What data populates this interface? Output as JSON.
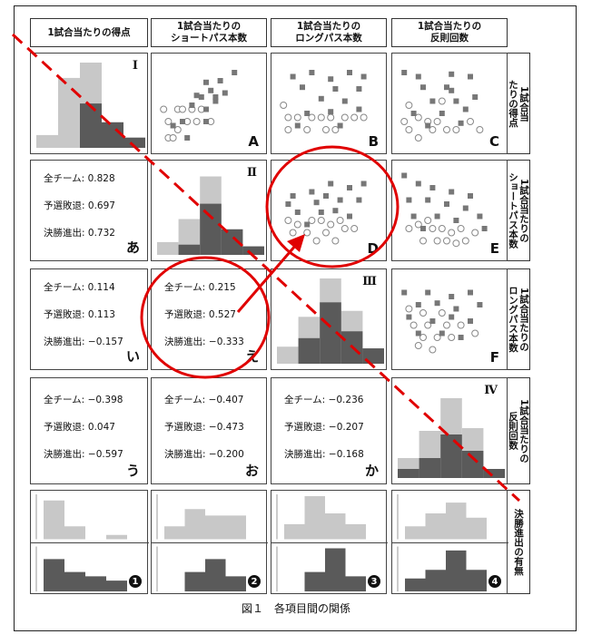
{
  "caption": "図１　各項目間の関係",
  "col_headers": [
    {
      "l1": "1試合当たりの得点",
      "l2": ""
    },
    {
      "l1": "1試合当たりの",
      "l2": "ショートパス本数"
    },
    {
      "l1": "1試合当たりの",
      "l2": "ロングパス本数"
    },
    {
      "l1": "1試合当たりの",
      "l2": "反則回数"
    }
  ],
  "row_labels": [
    "1試合当\nたりの得点",
    "1試合当たりの\nショートパス本数",
    "1試合当たりの\nロングパス本数",
    "1試合当たりの\n反則回数",
    "決勝進出の有無"
  ],
  "diag_marks": [
    "Ⅰ",
    "Ⅱ",
    "Ⅲ",
    "Ⅳ"
  ],
  "scatter_letters": [
    "A",
    "B",
    "C",
    "D",
    "E",
    "F"
  ],
  "corr_cells": [
    {
      "letter": "あ",
      "rows": [
        [
          "全チーム:",
          "0.828"
        ],
        [
          "予選敗退:",
          "0.697"
        ],
        [
          "決勝進出:",
          "0.732"
        ]
      ]
    },
    {
      "letter": "い",
      "rows": [
        [
          "全チーム:",
          "0.114"
        ],
        [
          "予選敗退:",
          "0.113"
        ],
        [
          "決勝進出:",
          "−0.157"
        ]
      ]
    },
    {
      "letter": "え",
      "rows": [
        [
          "全チーム:",
          "0.215"
        ],
        [
          "予選敗退:",
          "0.527"
        ],
        [
          "決勝進出:",
          "−0.333"
        ]
      ]
    },
    {
      "letter": "う",
      "rows": [
        [
          "全チーム:",
          "−0.398"
        ],
        [
          "予選敗退:",
          "0.047"
        ],
        [
          "決勝進出:",
          "−0.597"
        ]
      ]
    },
    {
      "letter": "お",
      "rows": [
        [
          "全チーム:",
          "−0.407"
        ],
        [
          "予選敗退:",
          "−0.473"
        ],
        [
          "決勝進出:",
          "−0.200"
        ]
      ]
    },
    {
      "letter": "か",
      "rows": [
        [
          "全チーム:",
          "−0.236"
        ],
        [
          "予選敗退:",
          "−0.207"
        ],
        [
          "決勝進出:",
          "−0.168"
        ]
      ]
    }
  ],
  "bottom_badges": [
    "1",
    "2",
    "3",
    "4"
  ],
  "colors": {
    "light": "#c8c8c8",
    "dark": "#5a5a5a",
    "red": "#e00000",
    "open": "#888888"
  },
  "chart_data": {
    "type": "scatter",
    "diagonal_histograms": [
      {
        "light": [
          0.15,
          0.82,
          1.0,
          0.3,
          0.12
        ],
        "dark": [
          0,
          0,
          0.52,
          0.3,
          0.12
        ]
      },
      {
        "light": [
          0.15,
          0.42,
          0.92,
          0.3,
          0.1
        ],
        "dark": [
          0,
          0.12,
          0.6,
          0.3,
          0.1
        ]
      },
      {
        "light": [
          0.2,
          0.55,
          1.0,
          0.62,
          0.18
        ],
        "dark": [
          0,
          0.3,
          0.72,
          0.38,
          0.18
        ]
      },
      {
        "light": [
          0.22,
          0.52,
          0.88,
          0.55,
          0.1
        ],
        "dark": [
          0.1,
          0.22,
          0.48,
          0.3,
          0.1
        ]
      }
    ],
    "bottom_histograms": [
      {
        "light": [
          0.9,
          0.3,
          0,
          0.1
        ],
        "dark": [
          0.75,
          0.45,
          0.35,
          0.25
        ]
      },
      {
        "light": [
          0.3,
          0.7,
          0.55,
          0.55
        ],
        "dark": [
          0,
          0.45,
          0.75,
          0.35
        ]
      },
      {
        "light": [
          0.35,
          1.0,
          0.6,
          0.35
        ],
        "dark": [
          0,
          0.45,
          1.0,
          0.35
        ]
      },
      {
        "light": [
          0.3,
          0.6,
          0.85,
          0.5
        ],
        "dark": [
          0.3,
          0.5,
          0.95,
          0.5
        ]
      }
    ],
    "scatters": [
      {
        "id": "A",
        "filled": [
          [
            0.8,
            0.9
          ],
          [
            0.65,
            0.8
          ],
          [
            0.5,
            0.78
          ],
          [
            0.55,
            0.68
          ],
          [
            0.45,
            0.6
          ],
          [
            0.6,
            0.55
          ],
          [
            0.7,
            0.65
          ],
          [
            0.35,
            0.5
          ],
          [
            0.5,
            0.45
          ],
          [
            0.25,
            0.3
          ],
          [
            0.15,
            0.25
          ],
          [
            0.3,
            0.1
          ],
          [
            0.5,
            0.3
          ],
          [
            0.6,
            0.6
          ],
          [
            0.4,
            0.62
          ]
        ],
        "open": [
          [
            0.05,
            0.45
          ],
          [
            0.1,
            0.3
          ],
          [
            0.2,
            0.45
          ],
          [
            0.25,
            0.45
          ],
          [
            0.35,
            0.45
          ],
          [
            0.3,
            0.3
          ],
          [
            0.4,
            0.3
          ],
          [
            0.45,
            0.45
          ],
          [
            0.55,
            0.3
          ],
          [
            0.1,
            0.1
          ],
          [
            0.2,
            0.2
          ],
          [
            0.15,
            0.1
          ]
        ]
      },
      {
        "id": "B",
        "filled": [
          [
            0.15,
            0.85
          ],
          [
            0.35,
            0.9
          ],
          [
            0.55,
            0.82
          ],
          [
            0.75,
            0.9
          ],
          [
            0.9,
            0.85
          ],
          [
            0.25,
            0.72
          ],
          [
            0.6,
            0.7
          ],
          [
            0.85,
            0.7
          ],
          [
            0.45,
            0.58
          ],
          [
            0.7,
            0.55
          ],
          [
            0.3,
            0.4
          ],
          [
            0.55,
            0.42
          ],
          [
            0.2,
            0.25
          ],
          [
            0.65,
            0.25
          ],
          [
            0.85,
            0.45
          ]
        ],
        "open": [
          [
            0.05,
            0.5
          ],
          [
            0.1,
            0.35
          ],
          [
            0.2,
            0.35
          ],
          [
            0.35,
            0.35
          ],
          [
            0.45,
            0.35
          ],
          [
            0.55,
            0.35
          ],
          [
            0.7,
            0.35
          ],
          [
            0.8,
            0.35
          ],
          [
            0.1,
            0.2
          ],
          [
            0.3,
            0.2
          ],
          [
            0.5,
            0.2
          ],
          [
            0.6,
            0.2
          ],
          [
            0.9,
            0.35
          ]
        ]
      },
      {
        "id": "C",
        "filled": [
          [
            0.2,
            0.85
          ],
          [
            0.05,
            0.9
          ],
          [
            0.55,
            0.88
          ],
          [
            0.75,
            0.85
          ],
          [
            0.25,
            0.72
          ],
          [
            0.5,
            0.72
          ],
          [
            0.35,
            0.55
          ],
          [
            0.6,
            0.55
          ],
          [
            0.8,
            0.6
          ],
          [
            0.15,
            0.4
          ],
          [
            0.45,
            0.4
          ],
          [
            0.7,
            0.45
          ],
          [
            0.3,
            0.25
          ],
          [
            0.65,
            0.28
          ],
          [
            0.55,
            0.68
          ]
        ],
        "open": [
          [
            0.1,
            0.5
          ],
          [
            0.2,
            0.35
          ],
          [
            0.3,
            0.3
          ],
          [
            0.4,
            0.3
          ],
          [
            0.05,
            0.3
          ],
          [
            0.1,
            0.2
          ],
          [
            0.35,
            0.2
          ],
          [
            0.5,
            0.2
          ],
          [
            0.6,
            0.2
          ],
          [
            0.45,
            0.55
          ],
          [
            0.75,
            0.3
          ],
          [
            0.85,
            0.2
          ],
          [
            0.2,
            0.1
          ]
        ]
      },
      {
        "id": "D",
        "filled": [
          [
            0.55,
            0.85
          ],
          [
            0.75,
            0.8
          ],
          [
            0.15,
            0.7
          ],
          [
            0.35,
            0.75
          ],
          [
            0.5,
            0.7
          ],
          [
            0.65,
            0.65
          ],
          [
            0.85,
            0.65
          ],
          [
            0.2,
            0.5
          ],
          [
            0.45,
            0.5
          ],
          [
            0.6,
            0.52
          ],
          [
            0.75,
            0.45
          ],
          [
            0.3,
            0.35
          ],
          [
            0.1,
            0.6
          ],
          [
            0.4,
            0.62
          ],
          [
            0.9,
            0.85
          ]
        ],
        "open": [
          [
            0.1,
            0.4
          ],
          [
            0.2,
            0.35
          ],
          [
            0.35,
            0.4
          ],
          [
            0.45,
            0.4
          ],
          [
            0.55,
            0.35
          ],
          [
            0.65,
            0.4
          ],
          [
            0.3,
            0.25
          ],
          [
            0.5,
            0.25
          ],
          [
            0.7,
            0.3
          ],
          [
            0.8,
            0.3
          ],
          [
            0.15,
            0.25
          ],
          [
            0.4,
            0.15
          ],
          [
            0.6,
            0.15
          ]
        ]
      },
      {
        "id": "E",
        "filled": [
          [
            0.05,
            0.95
          ],
          [
            0.2,
            0.85
          ],
          [
            0.35,
            0.8
          ],
          [
            0.55,
            0.75
          ],
          [
            0.1,
            0.65
          ],
          [
            0.3,
            0.65
          ],
          [
            0.5,
            0.6
          ],
          [
            0.7,
            0.55
          ],
          [
            0.15,
            0.45
          ],
          [
            0.4,
            0.45
          ],
          [
            0.6,
            0.4
          ],
          [
            0.85,
            0.45
          ],
          [
            0.25,
            0.3
          ],
          [
            0.75,
            0.7
          ],
          [
            0.9,
            0.3
          ]
        ],
        "open": [
          [
            0.1,
            0.3
          ],
          [
            0.2,
            0.35
          ],
          [
            0.3,
            0.4
          ],
          [
            0.45,
            0.3
          ],
          [
            0.55,
            0.25
          ],
          [
            0.65,
            0.3
          ],
          [
            0.8,
            0.25
          ],
          [
            0.25,
            0.15
          ],
          [
            0.4,
            0.15
          ],
          [
            0.5,
            0.15
          ],
          [
            0.6,
            0.12
          ],
          [
            0.7,
            0.15
          ],
          [
            0.35,
            0.3
          ]
        ]
      },
      {
        "id": "F",
        "filled": [
          [
            0.05,
            0.85
          ],
          [
            0.3,
            0.85
          ],
          [
            0.55,
            0.8
          ],
          [
            0.75,
            0.85
          ],
          [
            0.2,
            0.7
          ],
          [
            0.4,
            0.72
          ],
          [
            0.6,
            0.65
          ],
          [
            0.85,
            0.7
          ],
          [
            0.1,
            0.55
          ],
          [
            0.35,
            0.5
          ],
          [
            0.55,
            0.55
          ],
          [
            0.75,
            0.5
          ],
          [
            0.2,
            0.35
          ],
          [
            0.45,
            0.35
          ],
          [
            0.65,
            0.3
          ]
        ],
        "open": [
          [
            0.1,
            0.65
          ],
          [
            0.25,
            0.6
          ],
          [
            0.45,
            0.6
          ],
          [
            0.15,
            0.45
          ],
          [
            0.3,
            0.45
          ],
          [
            0.5,
            0.45
          ],
          [
            0.65,
            0.45
          ],
          [
            0.25,
            0.3
          ],
          [
            0.4,
            0.3
          ],
          [
            0.55,
            0.3
          ],
          [
            0.35,
            0.15
          ],
          [
            0.2,
            0.2
          ],
          [
            0.8,
            0.35
          ]
        ]
      }
    ]
  }
}
